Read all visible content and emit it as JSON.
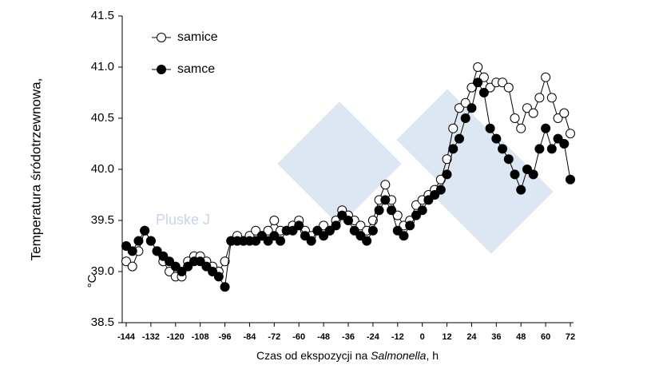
{
  "chart_data": {
    "type": "line",
    "ylabel": "Temperatura śródotrzewnowa,",
    "yunit": "°C",
    "xlabel": [
      "Czas od ekspozycji na ",
      "Salmonella",
      ", h"
    ],
    "watermark": "Pluske J",
    "xlim": [
      -144,
      72
    ],
    "xticks": [
      -144,
      -132,
      -120,
      -108,
      -96,
      -84,
      -72,
      -60,
      -48,
      -36,
      -24,
      -12,
      0,
      12,
      24,
      36,
      48,
      60,
      72
    ],
    "ylim": [
      38.5,
      41.5
    ],
    "yticks": [
      38.5,
      {
        "value": 39,
        "label": "39.0"
      },
      39.5,
      {
        "value": 40,
        "label": "40.0"
      },
      40.5,
      {
        "value": 41,
        "label": "41.0"
      },
      41.5
    ],
    "x": [
      -144,
      -141,
      -138,
      -135,
      -132,
      -129,
      -126,
      -123,
      -120,
      -117,
      -114,
      -111,
      -108,
      -105,
      -102,
      -99,
      -96,
      -93,
      -90,
      -87,
      -84,
      -81,
      -78,
      -75,
      -72,
      -69,
      -66,
      -63,
      -60,
      -57,
      -54,
      -51,
      -48,
      -45,
      -42,
      -39,
      -36,
      -33,
      -30,
      -27,
      -24,
      -21,
      -18,
      -15,
      -12,
      -9,
      -6,
      -3,
      0,
      3,
      6,
      9,
      12,
      15,
      18,
      21,
      24,
      27,
      30,
      33,
      36,
      39,
      42,
      45,
      48,
      51,
      54,
      57,
      60,
      63,
      66,
      69,
      72
    ],
    "series": [
      {
        "name": "samice",
        "color": "#000000",
        "marker": "open",
        "values": [
          39.1,
          39.05,
          39.2,
          39.4,
          39.3,
          39.2,
          39.1,
          39.0,
          38.95,
          38.95,
          39.1,
          39.15,
          39.15,
          39.1,
          39.05,
          39.0,
          39.1,
          39.3,
          39.35,
          39.3,
          39.35,
          39.4,
          39.35,
          39.4,
          39.5,
          39.4,
          39.4,
          39.45,
          39.5,
          39.4,
          39.35,
          39.4,
          39.45,
          39.4,
          39.5,
          39.6,
          39.55,
          39.5,
          39.45,
          39.4,
          39.5,
          39.7,
          39.85,
          39.7,
          39.55,
          39.45,
          39.5,
          39.65,
          39.7,
          39.75,
          39.8,
          39.9,
          40.1,
          40.4,
          40.6,
          40.65,
          40.8,
          41.0,
          40.9,
          40.8,
          40.85,
          40.85,
          40.8,
          40.5,
          40.4,
          40.6,
          40.55,
          40.7,
          40.9,
          40.7,
          40.5,
          40.55,
          40.35
        ]
      },
      {
        "name": "samce",
        "color": "#000000",
        "marker": "filled",
        "values": [
          39.25,
          39.2,
          39.3,
          39.4,
          39.3,
          39.2,
          39.15,
          39.1,
          39.05,
          39.0,
          39.05,
          39.1,
          39.1,
          39.05,
          39.0,
          38.95,
          38.85,
          39.3,
          39.3,
          39.3,
          39.3,
          39.3,
          39.35,
          39.3,
          39.35,
          39.3,
          39.4,
          39.4,
          39.45,
          39.35,
          39.3,
          39.4,
          39.35,
          39.4,
          39.45,
          39.55,
          39.5,
          39.4,
          39.35,
          39.3,
          39.4,
          39.6,
          39.7,
          39.6,
          39.4,
          39.35,
          39.45,
          39.55,
          39.6,
          39.7,
          39.75,
          39.8,
          39.95,
          40.2,
          40.3,
          40.5,
          40.6,
          40.85,
          40.75,
          40.4,
          40.3,
          40.2,
          40.1,
          39.95,
          39.8,
          40.0,
          39.95,
          40.2,
          40.4,
          40.2,
          40.3,
          40.25,
          39.9
        ]
      }
    ]
  }
}
